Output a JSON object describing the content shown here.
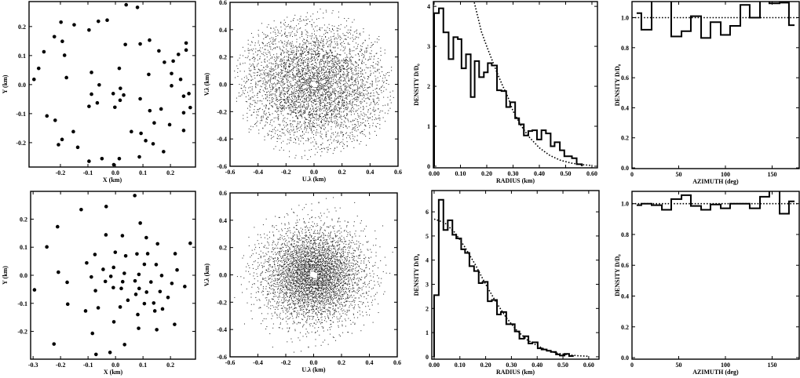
{
  "chart_data": [
    {
      "type": "scatter",
      "xlabel": "X (km)",
      "ylabel": "Y (km)",
      "xlim": [
        -0.314,
        0.291
      ],
      "ylim": [
        -0.284,
        0.286
      ],
      "xticks": [
        "-0.2",
        "-0.1",
        "0.0",
        "0.1",
        "0.2"
      ],
      "yticks": [
        "-0.2",
        "-0.1",
        "0.0",
        "0.1",
        "0.2"
      ],
      "points": [
        [
          0.039,
          0.275
        ],
        [
          0.08,
          0.266
        ],
        [
          -0.198,
          0.215
        ],
        [
          -0.15,
          0.206
        ],
        [
          -0.062,
          0.218
        ],
        [
          -0.03,
          0.222
        ],
        [
          -0.096,
          0.188
        ],
        [
          -0.222,
          0.165
        ],
        [
          -0.193,
          0.149
        ],
        [
          -0.26,
          0.113
        ],
        [
          -0.185,
          0.101
        ],
        [
          -0.279,
          0.056
        ],
        [
          -0.296,
          0.018
        ],
        [
          -0.178,
          0.024
        ],
        [
          -0.087,
          0.042
        ],
        [
          0.014,
          0.056
        ],
        [
          -0.059,
          -0.001
        ],
        [
          0.018,
          -0.013
        ],
        [
          -0.087,
          -0.033
        ],
        [
          -0.008,
          -0.031
        ],
        [
          0.03,
          -0.036
        ],
        [
          0.017,
          -0.054
        ],
        [
          -0.066,
          -0.063
        ],
        [
          -0.096,
          -0.075
        ],
        [
          -0.002,
          -0.078
        ],
        [
          0.036,
          0.138
        ],
        [
          0.09,
          0.14
        ],
        [
          0.124,
          0.153
        ],
        [
          0.158,
          0.116
        ],
        [
          0.178,
          0.077
        ],
        [
          0.21,
          0.081
        ],
        [
          0.229,
          0.104
        ],
        [
          0.257,
          0.143
        ],
        [
          0.257,
          0.119
        ],
        [
          0.121,
          0.035
        ],
        [
          0.204,
          0.038
        ],
        [
          0.204,
          -0.004
        ],
        [
          0.237,
          0.018
        ],
        [
          0.267,
          -0.031
        ],
        [
          0.248,
          -0.04
        ],
        [
          0.272,
          -0.079
        ],
        [
          0.248,
          -0.097
        ],
        [
          0.09,
          -0.049
        ],
        [
          0.125,
          -0.09
        ],
        [
          0.166,
          -0.084
        ],
        [
          0.141,
          -0.132
        ],
        [
          0.197,
          -0.138
        ],
        [
          0.248,
          -0.158
        ],
        [
          0.058,
          -0.162
        ],
        [
          0.093,
          -0.168
        ],
        [
          0.11,
          -0.193
        ],
        [
          0.137,
          -0.204
        ],
        [
          0.175,
          -0.231
        ],
        [
          0.087,
          -0.249
        ],
        [
          0.014,
          -0.255
        ],
        [
          -0.049,
          -0.255
        ],
        [
          -0.096,
          -0.264
        ],
        [
          -0.006,
          -0.276
        ],
        [
          -0.249,
          -0.108
        ],
        [
          -0.219,
          -0.123
        ],
        [
          -0.153,
          -0.162
        ],
        [
          -0.194,
          -0.189
        ],
        [
          -0.207,
          -0.207
        ],
        [
          -0.137,
          -0.216
        ]
      ]
    },
    {
      "type": "scatter",
      "xlabel": "U.λ (km)",
      "ylabel": "V.λ (km)",
      "xlim": [
        -0.6,
        0.6
      ],
      "ylim": [
        -0.6,
        0.6
      ],
      "xticks": [
        "-0.6",
        "-0.4",
        "-0.2",
        "0.0",
        "0.2",
        "0.4",
        "0.6"
      ],
      "yticks": [
        "-0.6",
        "-0.4",
        "-0.2",
        "0.0",
        "0.2",
        "0.4",
        "0.6"
      ],
      "baselines_of": 0
    },
    {
      "type": "histogram",
      "xlabel": "RADIUS (km)",
      "ylabel": "DENSITY  D/D₀",
      "xlim": [
        -0.003,
        0.621
      ],
      "ylim": [
        -0.04,
        4.12
      ],
      "xticks": [
        "0.00",
        "0.10",
        "0.20",
        "0.30",
        "0.40",
        "0.50",
        "0.60"
      ],
      "yticks": [
        "0",
        "1",
        "2",
        "3",
        "4"
      ],
      "bin_edges": [
        0,
        0.018,
        0.035,
        0.055,
        0.073,
        0.09,
        0.104,
        0.121,
        0.139,
        0.154,
        0.171,
        0.189,
        0.204,
        0.219,
        0.239,
        0.256,
        0.274,
        0.289,
        0.308,
        0.323,
        0.341,
        0.358,
        0.373,
        0.391,
        0.408,
        0.425,
        0.443,
        0.458,
        0.478,
        0.495,
        0.524,
        0.542,
        0.562
      ],
      "values": [
        3.83,
        3.95,
        3.35,
        2.68,
        3.23,
        3.18,
        2.45,
        2.8,
        1.73,
        2.63,
        2.23,
        2.35,
        2.58,
        2.52,
        1.9,
        1.88,
        1.48,
        1.6,
        1.2,
        1.05,
        0.77,
        0.88,
        0.9,
        0.67,
        0.9,
        0.82,
        0.5,
        0.6,
        0.4,
        0.25,
        0.2,
        0.05
      ],
      "reference_curve": {
        "x": [
          0.15,
          0.18,
          0.2,
          0.22,
          0.24,
          0.26,
          0.28,
          0.3,
          0.33,
          0.36,
          0.4,
          0.44,
          0.48,
          0.52,
          0.56,
          0.6
        ],
        "y": [
          4.17,
          3.36,
          3.0,
          2.66,
          2.33,
          2.02,
          1.74,
          1.38,
          1.02,
          0.74,
          0.46,
          0.27,
          0.15,
          0.08,
          0.04,
          0.02
        ]
      }
    },
    {
      "type": "histogram",
      "xlabel": "AZIMUTH (deg)",
      "ylabel": "DENSITY  D/D₀",
      "xlim": [
        0,
        179
      ],
      "ylim": [
        -0.005,
        1.107
      ],
      "xticks": [
        "0",
        "50",
        "100",
        "150"
      ],
      "yticks": [
        "0.0",
        "0.2",
        "0.4",
        "0.6",
        "0.8",
        "1.0"
      ],
      "bin_edges": [
        5,
        10,
        21,
        32,
        42,
        53,
        63,
        74,
        84,
        95,
        105,
        116,
        126,
        137,
        147,
        158,
        168,
        174
      ],
      "values": [
        1.03,
        0.92,
        1.15,
        1.15,
        0.875,
        0.91,
        1.01,
        0.865,
        0.97,
        0.885,
        0.945,
        1.085,
        1.0,
        1.15,
        1.095,
        1.1,
        0.95
      ],
      "reference_line": 1.0
    },
    {
      "type": "scatter",
      "xlabel": "X (km)",
      "ylabel": "Y (km)",
      "xlim": [
        -0.309,
        0.291
      ],
      "ylim": [
        -0.299,
        0.299
      ],
      "xticks": [
        "-0.3",
        "-0.2",
        "-0.1",
        "0.0",
        "0.1",
        "0.2"
      ],
      "yticks": [
        "-0.2",
        "-0.1",
        "0.0",
        "0.1",
        "0.2"
      ],
      "points": [
        [
          0.07,
          0.284
        ],
        [
          -0.125,
          0.234
        ],
        [
          -0.034,
          0.245
        ],
        [
          -0.211,
          0.173
        ],
        [
          0.09,
          0.186
        ],
        [
          -0.035,
          0.144
        ],
        [
          0.025,
          0.141
        ],
        [
          0.112,
          0.134
        ],
        [
          0.153,
          0.112
        ],
        [
          0.272,
          0.114
        ],
        [
          -0.25,
          0.101
        ],
        [
          -0.001,
          0.082
        ],
        [
          -0.075,
          0.074
        ],
        [
          0.037,
          0.069
        ],
        [
          0.078,
          0.076
        ],
        [
          0.117,
          0.077
        ],
        [
          0.217,
          0.077
        ],
        [
          -0.105,
          0.044
        ],
        [
          0.105,
          0.039
        ],
        [
          0.148,
          0.038
        ],
        [
          0.224,
          0.019
        ],
        [
          -0.208,
          0.011
        ],
        [
          -0.045,
          0.021
        ],
        [
          -0.007,
          0.028
        ],
        [
          -0.088,
          -0.006
        ],
        [
          -0.017,
          -0.004
        ],
        [
          0.032,
          0.007
        ],
        [
          0.085,
          0.003
        ],
        [
          0.168,
          -0.001
        ],
        [
          -0.176,
          -0.025
        ],
        [
          -0.037,
          -0.022
        ],
        [
          0.026,
          -0.023
        ],
        [
          0.071,
          -0.02
        ],
        [
          0.129,
          -0.024
        ],
        [
          0.205,
          -0.029
        ],
        [
          -0.295,
          -0.052
        ],
        [
          -0.073,
          -0.055
        ],
        [
          -0.008,
          -0.044
        ],
        [
          0.021,
          -0.047
        ],
        [
          0.086,
          -0.047
        ],
        [
          0.074,
          -0.068
        ],
        [
          0.113,
          -0.06
        ],
        [
          0.162,
          -0.058
        ],
        [
          0.252,
          -0.04
        ],
        [
          0.191,
          -0.079
        ],
        [
          -0.174,
          -0.103
        ],
        [
          0.045,
          -0.089
        ],
        [
          0.105,
          -0.101
        ],
        [
          0.139,
          -0.099
        ],
        [
          -0.109,
          -0.127
        ],
        [
          -0.063,
          -0.116
        ],
        [
          0.017,
          -0.113
        ],
        [
          0.143,
          -0.127
        ],
        [
          0.171,
          -0.12
        ],
        [
          0.081,
          -0.14
        ],
        [
          -0.006,
          -0.166
        ],
        [
          0.084,
          -0.189
        ],
        [
          0.15,
          -0.194
        ],
        [
          0.215,
          -0.175
        ],
        [
          -0.084,
          -0.207
        ],
        [
          -0.224,
          -0.245
        ],
        [
          0.033,
          -0.247
        ],
        [
          -0.071,
          -0.282
        ],
        [
          -0.02,
          -0.275
        ]
      ]
    },
    {
      "type": "scatter",
      "xlabel": "U.λ (km)",
      "ylabel": "V.λ (km)",
      "xlim": [
        -0.6,
        0.6
      ],
      "ylim": [
        -0.6,
        0.6
      ],
      "xticks": [
        "-0.6",
        "-0.4",
        "-0.2",
        "0.0",
        "0.2",
        "0.4",
        "0.6"
      ],
      "yticks": [
        "-0.6",
        "-0.4",
        "-0.2",
        "0.0",
        "0.2",
        "0.4",
        "0.6"
      ],
      "baselines_of": 4
    },
    {
      "type": "histogram",
      "xlabel": "RADIUS (km)",
      "ylabel": "DENSITY  D/D₀",
      "xlim": [
        -0.009,
        0.64
      ],
      "ylim": [
        -0.1,
        6.88
      ],
      "xticks": [
        "0.00",
        "0.10",
        "0.20",
        "0.30",
        "0.40",
        "0.50",
        "0.60"
      ],
      "yticks": [
        "0",
        "1",
        "2",
        "3",
        "4",
        "5",
        "6"
      ],
      "bin_edges": [
        0,
        0.018,
        0.036,
        0.053,
        0.071,
        0.086,
        0.105,
        0.12,
        0.137,
        0.155,
        0.173,
        0.188,
        0.208,
        0.224,
        0.244,
        0.259,
        0.28,
        0.295,
        0.313,
        0.331,
        0.349,
        0.366,
        0.381,
        0.402,
        0.417,
        0.437,
        0.453,
        0.473,
        0.488,
        0.506,
        0.524,
        0.539
      ],
      "values": [
        2.55,
        6.5,
        5.25,
        5.65,
        5.05,
        4.9,
        4.45,
        4.3,
        3.75,
        3.55,
        3.05,
        3.1,
        2.3,
        2.35,
        1.75,
        1.85,
        1.35,
        1.35,
        1.05,
        0.75,
        0.85,
        0.55,
        0.6,
        0.35,
        0.3,
        0.25,
        0.2,
        0.1,
        0.05,
        0.12,
        0.03
      ],
      "reference_curve": {
        "x": [
          0,
          0.04,
          0.08,
          0.12,
          0.16,
          0.2,
          0.24,
          0.28,
          0.32,
          0.36,
          0.4,
          0.44,
          0.48,
          0.52,
          0.56,
          0.6
        ],
        "y": [
          5.7,
          5.56,
          5.15,
          4.53,
          3.81,
          3.0,
          2.27,
          1.62,
          1.1,
          0.71,
          0.46,
          0.26,
          0.14,
          0.08,
          0.04,
          0.02
        ]
      }
    },
    {
      "type": "histogram",
      "xlabel": "AZIMUTH (deg)",
      "ylabel": "DENSITY  D/D₀",
      "xlim": [
        0,
        179
      ],
      "ylim": [
        -0.01,
        1.08
      ],
      "xticks": [
        "0",
        "50",
        "100",
        "150"
      ],
      "yticks": [
        "0.0",
        "0.2",
        "0.4",
        "0.6",
        "0.8",
        "1.0"
      ],
      "bin_edges": [
        5,
        10,
        21,
        32,
        42,
        53,
        63,
        74,
        84,
        95,
        105,
        116,
        126,
        137,
        147,
        158,
        168,
        174
      ],
      "values": [
        0.99,
        1.0,
        0.99,
        0.96,
        1.03,
        1.055,
        0.985,
        0.96,
        0.995,
        0.97,
        1.0,
        1.0,
        0.97,
        1.045,
        1.09,
        0.935,
        1.015
      ],
      "reference_line": 1.0
    }
  ]
}
